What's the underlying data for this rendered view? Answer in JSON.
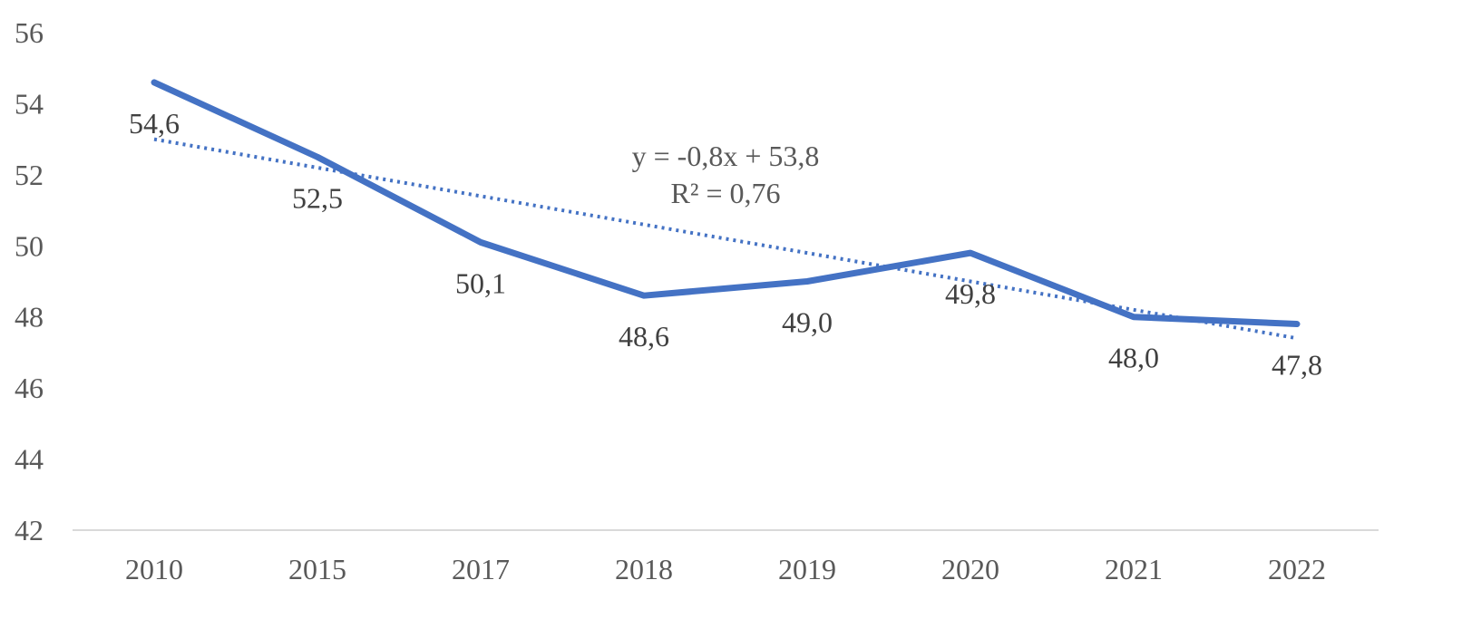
{
  "chart_data": {
    "type": "line",
    "categories": [
      "2010",
      "2015",
      "2017",
      "2018",
      "2019",
      "2020",
      "2021",
      "2022"
    ],
    "series": [
      {
        "values": [
          54.6,
          52.5,
          50.1,
          48.6,
          49.0,
          49.8,
          48.0,
          47.8
        ],
        "labels": [
          "54,6",
          "52,5",
          "50,1",
          "48,6",
          "49,0",
          "49,8",
          "48,0",
          "47,8"
        ],
        "color": "#4472C4"
      }
    ],
    "trendline": {
      "type": "linear",
      "slope": -0.8,
      "intercept": 53.8,
      "equation": "y = -0,8x + 53,8",
      "r_squared": "R² = 0,76",
      "style": "dotted",
      "color": "#4472C4"
    },
    "yticks": [
      "42",
      "44",
      "46",
      "48",
      "50",
      "52",
      "54",
      "56"
    ],
    "ylim": [
      42,
      56
    ],
    "grid": false,
    "xlabel": "",
    "ylabel": "",
    "title": ""
  }
}
